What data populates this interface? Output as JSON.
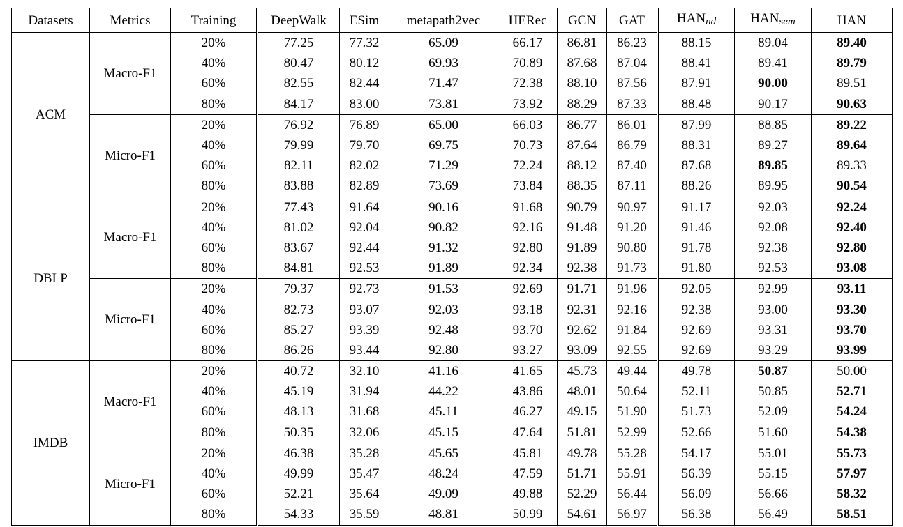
{
  "headers": {
    "datasets": "Datasets",
    "metrics": "Metrics",
    "training": "Training",
    "methods": [
      "DeepWalk",
      "ESim",
      "metapath2vec",
      "HERec",
      "GCN",
      "GAT"
    ],
    "han_nd": {
      "base": "HAN",
      "sub": "nd"
    },
    "han_sem": {
      "base": "HAN",
      "sub": "sem"
    },
    "han": "HAN"
  },
  "training_levels": [
    "20%",
    "40%",
    "60%",
    "80%"
  ],
  "datasets": [
    {
      "name": "ACM",
      "metrics": [
        {
          "name": "Macro-F1",
          "rows": [
            {
              "values": [
                "77.25",
                "77.32",
                "65.09",
                "66.17",
                "86.81",
                "86.23",
                "88.15",
                "89.04",
                "89.40"
              ],
              "bold": 8
            },
            {
              "values": [
                "80.47",
                "80.12",
                "69.93",
                "70.89",
                "87.68",
                "87.04",
                "88.41",
                "89.41",
                "89.79"
              ],
              "bold": 8
            },
            {
              "values": [
                "82.55",
                "82.44",
                "71.47",
                "72.38",
                "88.10",
                "87.56",
                "87.91",
                "90.00",
                "89.51"
              ],
              "bold": 7
            },
            {
              "values": [
                "84.17",
                "83.00",
                "73.81",
                "73.92",
                "88.29",
                "87.33",
                "88.48",
                "90.17",
                "90.63"
              ],
              "bold": 8
            }
          ]
        },
        {
          "name": "Micro-F1",
          "rows": [
            {
              "values": [
                "76.92",
                "76.89",
                "65.00",
                "66.03",
                "86.77",
                "86.01",
                "87.99",
                "88.85",
                "89.22"
              ],
              "bold": 8
            },
            {
              "values": [
                "79.99",
                "79.70",
                "69.75",
                "70.73",
                "87.64",
                "86.79",
                "88.31",
                "89.27",
                "89.64"
              ],
              "bold": 8
            },
            {
              "values": [
                "82.11",
                "82.02",
                "71.29",
                "72.24",
                "88.12",
                "87.40",
                "87.68",
                "89.85",
                "89.33"
              ],
              "bold": 7
            },
            {
              "values": [
                "83.88",
                "82.89",
                "73.69",
                "73.84",
                "88.35",
                "87.11",
                "88.26",
                "89.95",
                "90.54"
              ],
              "bold": 8
            }
          ]
        }
      ]
    },
    {
      "name": "DBLP",
      "metrics": [
        {
          "name": "Macro-F1",
          "rows": [
            {
              "values": [
                "77.43",
                "91.64",
                "90.16",
                "91.68",
                "90.79",
                "90.97",
                "91.17",
                "92.03",
                "92.24"
              ],
              "bold": 8
            },
            {
              "values": [
                "81.02",
                "92.04",
                "90.82",
                "92.16",
                "91.48",
                "91.20",
                "91.46",
                "92.08",
                "92.40"
              ],
              "bold": 8
            },
            {
              "values": [
                "83.67",
                "92.44",
                "91.32",
                "92.80",
                "91.89",
                "90.80",
                "91.78",
                "92.38",
                "92.80"
              ],
              "bold": 8
            },
            {
              "values": [
                "84.81",
                "92.53",
                "91.89",
                "92.34",
                "92.38",
                "91.73",
                "91.80",
                "92.53",
                "93.08"
              ],
              "bold": 8
            }
          ]
        },
        {
          "name": "Micro-F1",
          "rows": [
            {
              "values": [
                "79.37",
                "92.73",
                "91.53",
                "92.69",
                "91.71",
                "91.96",
                "92.05",
                "92.99",
                "93.11"
              ],
              "bold": 8
            },
            {
              "values": [
                "82.73",
                "93.07",
                "92.03",
                "93.18",
                "92.31",
                "92.16",
                "92.38",
                "93.00",
                "93.30"
              ],
              "bold": 8
            },
            {
              "values": [
                "85.27",
                "93.39",
                "92.48",
                "93.70",
                "92.62",
                "91.84",
                "92.69",
                "93.31",
                "93.70"
              ],
              "bold": 8
            },
            {
              "values": [
                "86.26",
                "93.44",
                "92.80",
                "93.27",
                "93.09",
                "92.55",
                "92.69",
                "93.29",
                "93.99"
              ],
              "bold": 8
            }
          ]
        }
      ]
    },
    {
      "name": "IMDB",
      "metrics": [
        {
          "name": "Macro-F1",
          "rows": [
            {
              "values": [
                "40.72",
                "32.10",
                "41.16",
                "41.65",
                "45.73",
                "49.44",
                "49.78",
                "50.87",
                "50.00"
              ],
              "bold": 7
            },
            {
              "values": [
                "45.19",
                "31.94",
                "44.22",
                "43.86",
                "48.01",
                "50.64",
                "52.11",
                "50.85",
                "52.71"
              ],
              "bold": 8
            },
            {
              "values": [
                "48.13",
                "31.68",
                "45.11",
                "46.27",
                "49.15",
                "51.90",
                "51.73",
                "52.09",
                "54.24"
              ],
              "bold": 8
            },
            {
              "values": [
                "50.35",
                "32.06",
                "45.15",
                "47.64",
                "51.81",
                "52.99",
                "52.66",
                "51.60",
                "54.38"
              ],
              "bold": 8
            }
          ]
        },
        {
          "name": "Micro-F1",
          "rows": [
            {
              "values": [
                "46.38",
                "35.28",
                "45.65",
                "45.81",
                "49.78",
                "55.28",
                "54.17",
                "55.01",
                "55.73"
              ],
              "bold": 8
            },
            {
              "values": [
                "49.99",
                "35.47",
                "48.24",
                "47.59",
                "51.71",
                "55.91",
                "56.39",
                "55.15",
                "57.97"
              ],
              "bold": 8
            },
            {
              "values": [
                "52.21",
                "35.64",
                "49.09",
                "49.88",
                "52.29",
                "56.44",
                "56.09",
                "56.66",
                "58.32"
              ],
              "bold": 8
            },
            {
              "values": [
                "54.33",
                "35.59",
                "48.81",
                "50.99",
                "54.61",
                "56.97",
                "56.38",
                "56.49",
                "58.51"
              ],
              "bold": 8
            }
          ]
        }
      ]
    }
  ]
}
